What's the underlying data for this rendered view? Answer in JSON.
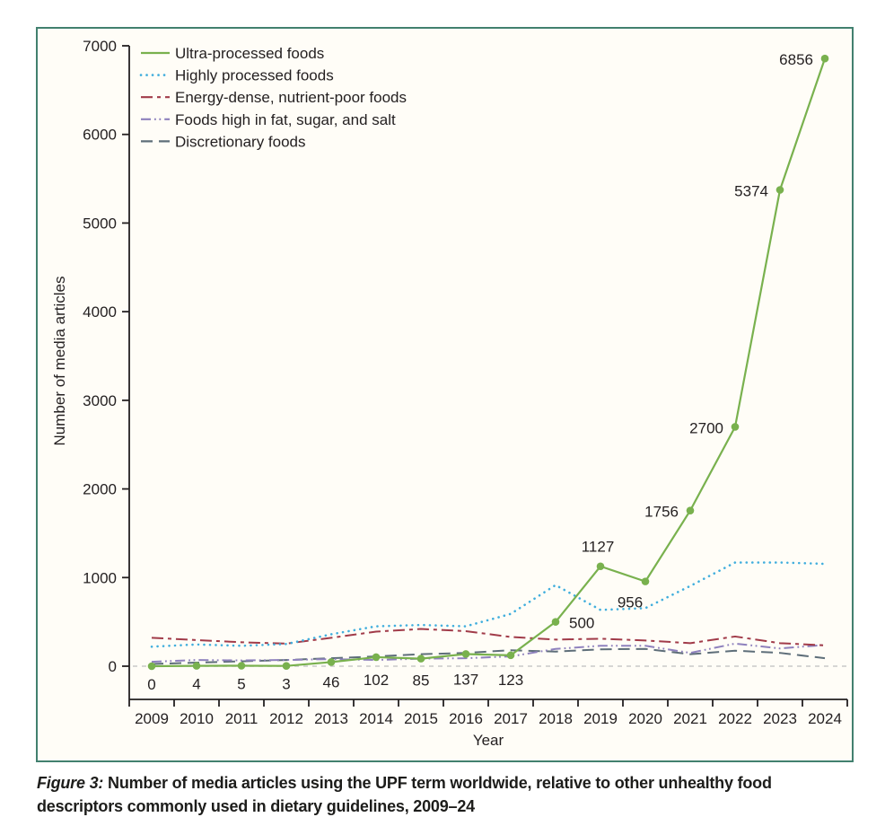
{
  "figure": {
    "caption_prefix": "Figure 3:",
    "caption_text": "Number of media articles using the UPF term worldwide, relative to other unhealthy food descriptors commonly used in dietary guidelines, 2009–24"
  },
  "colors": {
    "panel_border": "#42806f",
    "panel_bg": "#fffdf7",
    "ink": "#231f20",
    "zero_line": "#c9c9c9"
  },
  "chart_data": {
    "type": "line",
    "title": "",
    "xlabel": "Year",
    "ylabel": "Number of media articles",
    "ylim": [
      0,
      7000
    ],
    "yticks": [
      0,
      1000,
      2000,
      3000,
      4000,
      5000,
      6000,
      7000
    ],
    "grid": "dashed zero baseline only",
    "legend_position": "top-left inside plot",
    "categories": [
      "2009",
      "2010",
      "2011",
      "2012",
      "2013",
      "2014",
      "2015",
      "2016",
      "2017",
      "2018",
      "2019",
      "2020",
      "2021",
      "2022",
      "2023",
      "2024"
    ],
    "series": [
      {
        "name": "Ultra-processed foods",
        "color": "#79b14e",
        "style": "solid",
        "markers": true,
        "values_exact": true,
        "values": [
          0,
          4,
          5,
          3,
          46,
          102,
          85,
          137,
          123,
          500,
          1127,
          956,
          1756,
          2700,
          5374,
          6856
        ],
        "label_offsets": [
          [
            0,
            26,
            "m"
          ],
          [
            0,
            26,
            "m"
          ],
          [
            0,
            26,
            "m"
          ],
          [
            0,
            26,
            "m"
          ],
          [
            0,
            28,
            "m"
          ],
          [
            0,
            31,
            "m"
          ],
          [
            0,
            30,
            "m"
          ],
          [
            0,
            34,
            "m"
          ],
          [
            0,
            33,
            "m"
          ],
          [
            15,
            7,
            "s"
          ],
          [
            -3,
            -16,
            "m"
          ],
          [
            -17,
            29,
            "m"
          ],
          [
            -13,
            7,
            "e"
          ],
          [
            -13,
            7,
            "e"
          ],
          [
            -13,
            7,
            "e"
          ],
          [
            -13,
            7,
            "e"
          ]
        ]
      },
      {
        "name": "Highly processed foods",
        "color": "#41aedd",
        "style": "dotted",
        "markers": false,
        "values_exact": false,
        "values": [
          220,
          245,
          230,
          250,
          360,
          450,
          465,
          450,
          590,
          915,
          635,
          655,
          905,
          1170,
          1170,
          1155
        ]
      },
      {
        "name": "Energy-dense, nutrient-poor foods",
        "color": "#a13b49",
        "style": "dash-dot",
        "markers": false,
        "values_exact": false,
        "values": [
          320,
          295,
          270,
          255,
          320,
          390,
          420,
          395,
          330,
          300,
          310,
          290,
          260,
          335,
          260,
          235
        ]
      },
      {
        "name": "Foods high in fat, sugar, and salt",
        "color": "#8e81bd",
        "style": "dash-dot-dot",
        "markers": false,
        "values_exact": false,
        "values": [
          50,
          70,
          65,
          70,
          80,
          70,
          85,
          90,
          110,
          195,
          230,
          230,
          150,
          255,
          200,
          240
        ]
      },
      {
        "name": "Discretionary foods",
        "color": "#5e6e79",
        "style": "long-dash",
        "markers": false,
        "values_exact": false,
        "values": [
          25,
          40,
          55,
          70,
          90,
          110,
          135,
          150,
          180,
          165,
          190,
          195,
          135,
          175,
          150,
          90
        ]
      }
    ]
  }
}
